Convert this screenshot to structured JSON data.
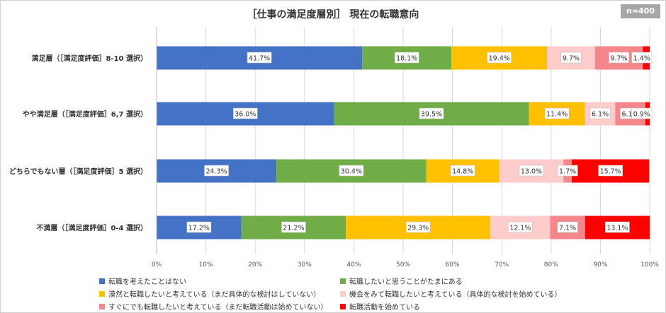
{
  "header": {
    "title": "［仕事の満足度層別］ 現在の転職意向",
    "sample_size": "n=400"
  },
  "chart_data": {
    "type": "bar",
    "orientation": "horizontal",
    "stacked": "percent",
    "categories": [
      "満足層（［満足度評価］8-10 選択）",
      "やや満足層（［満足度評価］6,7 選択）",
      "どちらでもない層（［満足度評価］5 選択）",
      "不満層（［満足度評価］0-4 選択）"
    ],
    "series": [
      {
        "name": "転職を考えたことはない",
        "color": "#4472c4",
        "values": [
          41.7,
          36.0,
          24.3,
          17.2
        ]
      },
      {
        "name": "転職したいと思うことがたまにある",
        "color": "#70ad47",
        "values": [
          18.1,
          39.5,
          30.4,
          21.2
        ]
      },
      {
        "name": "漠然と転職したいと考えている（まだ具体的な検討はしていない）",
        "color": "#ffc000",
        "values": [
          19.4,
          11.4,
          14.8,
          29.3
        ]
      },
      {
        "name": "機会をみて転職したいと考えている（具体的な検討を始めている）",
        "color": "#ffcccc",
        "values": [
          9.7,
          6.1,
          13.0,
          12.1
        ]
      },
      {
        "name": "すぐにでも転職したいと考えている（まだ転職活動は始めていない）",
        "color": "#f4878b",
        "values": [
          9.7,
          6.1,
          1.7,
          7.1
        ]
      },
      {
        "name": "転職活動を始めている",
        "color": "#ff0000",
        "values": [
          1.4,
          0.9,
          15.7,
          13.1
        ]
      }
    ],
    "x_ticks": [
      "0%",
      "10%",
      "20%",
      "30%",
      "40%",
      "50%",
      "60%",
      "70%",
      "80%",
      "90%",
      "100%"
    ],
    "xlim": [
      0,
      100
    ],
    "grid": true,
    "legend_position": "bottom"
  }
}
